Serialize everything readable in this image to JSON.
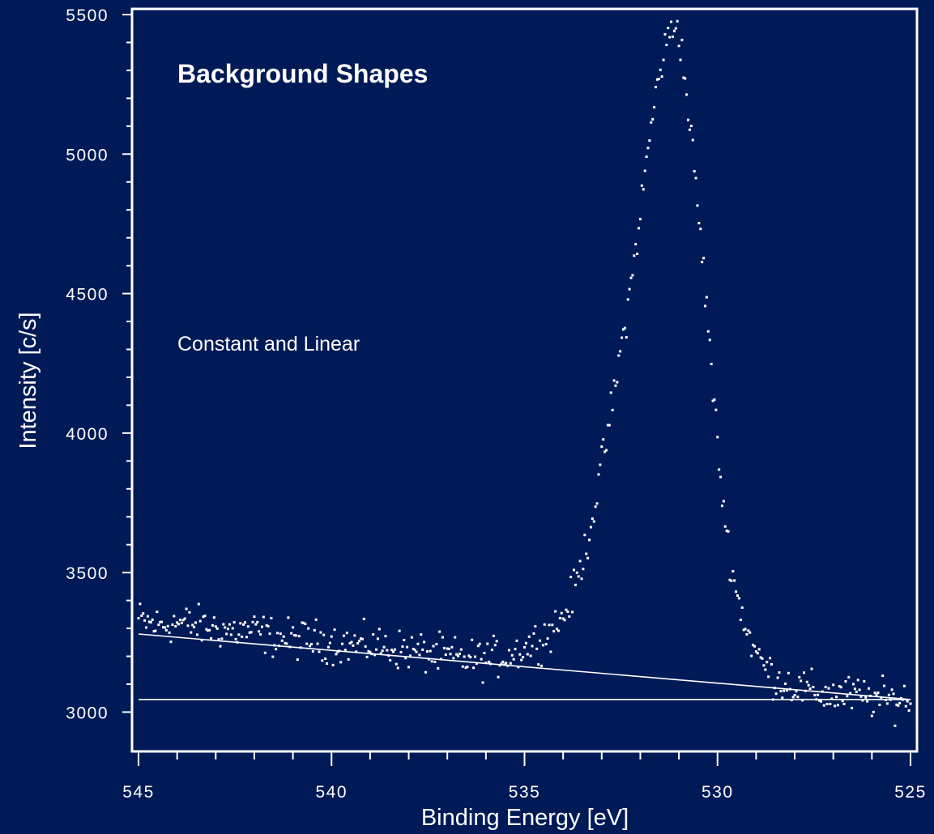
{
  "colors": {
    "background": "#001a57",
    "foreground": "#ffffff"
  },
  "chart_data": {
    "type": "scatter",
    "title": "Background Shapes",
    "subtitle": "Constant and Linear",
    "xlabel": "Binding Energy [eV]",
    "ylabel": "Intensity  [c/s]",
    "xlim": [
      545,
      525
    ],
    "ylim": [
      2920,
      5500
    ],
    "x_reversed": true,
    "grid": false,
    "x_ticks": [
      545,
      540,
      535,
      530,
      525
    ],
    "y_ticks": [
      3000,
      3500,
      4000,
      4500,
      5000,
      5500
    ],
    "series": [
      {
        "style": "points",
        "x": [
          545.0,
          544.5,
          544.0,
          543.5,
          543.0,
          542.5,
          542.0,
          541.5,
          541.0,
          540.5,
          540.0,
          539.5,
          539.0,
          538.5,
          538.0,
          537.5,
          537.0,
          536.5,
          536.0,
          535.5,
          535.0,
          534.5,
          534.0,
          533.75,
          533.5,
          533.25,
          533.0,
          532.75,
          532.5,
          532.25,
          532.0,
          531.75,
          531.5,
          531.25,
          531.1,
          531.0,
          530.9,
          530.75,
          530.5,
          530.25,
          530.0,
          529.75,
          529.5,
          529.25,
          529.0,
          528.75,
          528.5,
          528.0,
          527.5,
          527.0,
          526.5,
          526.0,
          525.5,
          525.0
        ],
        "y": [
          3330,
          3310,
          3320,
          3310,
          3300,
          3290,
          3290,
          3270,
          3260,
          3260,
          3250,
          3240,
          3240,
          3230,
          3220,
          3210,
          3200,
          3190,
          3190,
          3200,
          3230,
          3270,
          3340,
          3420,
          3540,
          3690,
          3880,
          4080,
          4300,
          4520,
          4790,
          5070,
          5300,
          5430,
          5470,
          5450,
          5330,
          5150,
          4800,
          4400,
          3950,
          3620,
          3420,
          3300,
          3210,
          3160,
          3120,
          3090,
          3070,
          3060,
          3060,
          3050,
          3040,
          3050
        ]
      },
      {
        "name": "",
        "style": "line",
        "x": [
          545,
          525
        ],
        "y": [
          3280,
          3045
        ]
      },
      {
        "name": "",
        "style": "line",
        "x": [
          545,
          525
        ],
        "y": [
          3045,
          3045
        ]
      }
    ]
  }
}
